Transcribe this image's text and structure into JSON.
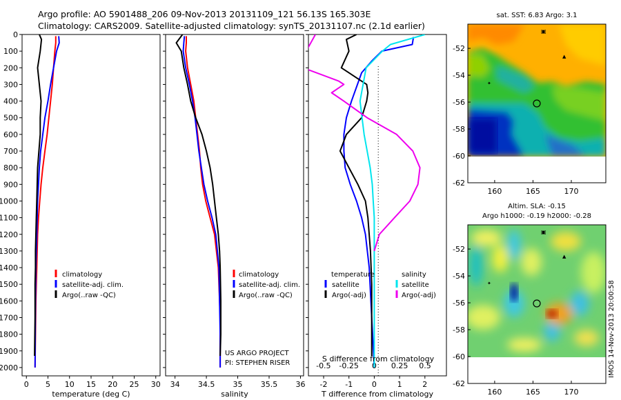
{
  "header": {
    "line1": "Argo profile: AO 5901488_206 09-Nov-2013 20131109_121 56.13S 165.303E",
    "line2": "Climatology: CARS2009. Satellite-adjusted climatology: synTS_20131107.nc (2.1d earlier)"
  },
  "project": {
    "line1": "US ARGO PROJECT",
    "line2": "PI: STEPHEN RISER"
  },
  "footer": "IMOS 14-Nov-2013 20:00:58",
  "colors": {
    "climatology": "#ff0000",
    "satellite": "#0000ff",
    "argo": "#000000",
    "satellite_s": "#00e5ee",
    "argo_s": "#ee00ee"
  },
  "chart_data": [
    {
      "type": "line",
      "xlabel": "temperature (deg C)",
      "ylabel": "",
      "xlim": [
        -1,
        31
      ],
      "ylim": [
        2050,
        0
      ],
      "xticks": [
        "0",
        "5",
        "10",
        "15",
        "20",
        "25",
        "30"
      ],
      "yticks": [
        "0",
        "100",
        "200",
        "300",
        "400",
        "500",
        "600",
        "700",
        "800",
        "900",
        "1000",
        "1100",
        "1200",
        "1300",
        "1400",
        "1500",
        "1600",
        "1700",
        "1800",
        "1900",
        "2000"
      ],
      "legend": [
        "climatology",
        "satellite-adj. clim.",
        "Argo(..raw -QC)"
      ],
      "series": [
        {
          "name": "climatology",
          "color": "#ff0000",
          "x": [
            6.8,
            6.8,
            6.6,
            6.3,
            6.0,
            5.6,
            5.2,
            4.8,
            4.3,
            3.8,
            3.4,
            3.1,
            2.8,
            2.6,
            2.5,
            2.4,
            2.3,
            2.2,
            2.1,
            2.0
          ],
          "y": [
            10,
            50,
            100,
            200,
            300,
            400,
            500,
            600,
            700,
            800,
            900,
            1000,
            1100,
            1200,
            1300,
            1400,
            1500,
            1600,
            1800,
            2000
          ]
        },
        {
          "name": "satellite-adj. clim.",
          "color": "#0000ff",
          "x": [
            7.5,
            7.6,
            7.0,
            6.3,
            5.6,
            5.0,
            4.3,
            3.8,
            3.3,
            3.0,
            2.8,
            2.6,
            2.5,
            2.4,
            2.3,
            2.2,
            2.1,
            2.0
          ],
          "y": [
            10,
            50,
            100,
            200,
            300,
            400,
            500,
            600,
            700,
            800,
            900,
            1000,
            1100,
            1200,
            1300,
            1400,
            1600,
            2000
          ]
        },
        {
          "name": "Argo(..raw -QC)",
          "color": "#000000",
          "x": [
            3.0,
            3.5,
            3.2,
            2.6,
            3.0,
            3.4,
            3.2,
            3.2,
            2.9,
            2.6,
            2.5,
            2.4,
            2.3,
            2.2,
            2.1,
            2.1,
            2.0,
            2.0,
            1.9
          ],
          "y": [
            0,
            30,
            100,
            200,
            300,
            400,
            500,
            600,
            700,
            800,
            900,
            1000,
            1100,
            1200,
            1300,
            1400,
            1500,
            1700,
            1930
          ]
        }
      ]
    },
    {
      "type": "line",
      "xlabel": "salinity",
      "xlim": [
        33.85,
        36.05
      ],
      "ylim": [
        2050,
        0
      ],
      "xticks": [
        "34",
        "34.5",
        "35",
        "35.5",
        "36"
      ],
      "legend": [
        "climatology",
        "satellite-adj. clim.",
        "Argo(..raw -QC)"
      ],
      "series": [
        {
          "name": "climatology",
          "color": "#ff0000",
          "x": [
            34.18,
            34.18,
            34.17,
            34.2,
            34.25,
            34.3,
            34.33,
            34.36,
            34.39,
            34.41,
            34.44,
            34.49,
            34.56,
            34.63,
            34.69,
            34.71,
            34.72,
            34.72,
            34.72
          ],
          "y": [
            10,
            50,
            100,
            200,
            300,
            400,
            500,
            600,
            700,
            800,
            900,
            1000,
            1100,
            1200,
            1400,
            1600,
            1700,
            1800,
            2000
          ]
        },
        {
          "name": "satellite-adj. clim.",
          "color": "#0000ff",
          "x": [
            34.15,
            34.14,
            34.13,
            34.17,
            34.23,
            34.28,
            34.32,
            34.35,
            34.38,
            34.42,
            34.46,
            34.52,
            34.59,
            34.65,
            34.7,
            34.71,
            34.72,
            34.72
          ],
          "y": [
            10,
            50,
            100,
            200,
            300,
            400,
            500,
            600,
            700,
            800,
            900,
            1000,
            1100,
            1200,
            1400,
            1600,
            1800,
            2000
          ]
        },
        {
          "name": "Argo(..raw -QC)",
          "color": "#000000",
          "x": [
            34.12,
            34.02,
            34.1,
            34.14,
            34.2,
            34.25,
            34.33,
            34.43,
            34.5,
            34.56,
            34.6,
            34.63,
            34.66,
            34.69,
            34.71,
            34.72,
            34.73,
            34.73,
            34.72
          ],
          "y": [
            0,
            50,
            100,
            200,
            300,
            400,
            500,
            600,
            700,
            800,
            900,
            1000,
            1100,
            1200,
            1300,
            1400,
            1600,
            1800,
            1930
          ]
        }
      ]
    },
    {
      "type": "line",
      "xlabel": "T difference from climatology",
      "x2label": "S difference from climatology",
      "xlim": [
        -2.6,
        2.85
      ],
      "ylim": [
        2050,
        0
      ],
      "xticks": [
        "-2",
        "-1",
        "0",
        "1",
        "2"
      ],
      "x2ticks": [
        "-0.5",
        "-0.25",
        "0",
        "0.25",
        "0.5"
      ],
      "legend_t": {
        "title": "temperature",
        "items": [
          "satellite",
          "Argo(-adj)"
        ]
      },
      "legend_s": {
        "title": "salinity",
        "items": [
          "satellite",
          "Argo(-adj)"
        ]
      },
      "series": [
        {
          "name": "satellite",
          "color": "#0000ff",
          "x": [
            1.55,
            1.5,
            0.3,
            -0.1,
            -0.5,
            -0.9,
            -1.1,
            -1.2,
            -1.2,
            -1.15,
            -0.95,
            -0.7,
            -0.5,
            -0.35,
            -0.2,
            -0.1,
            0.0
          ],
          "y": [
            15,
            60,
            100,
            160,
            230,
            400,
            500,
            600,
            700,
            800,
            900,
            1000,
            1100,
            1200,
            1400,
            1700,
            2000
          ]
        },
        {
          "name": "Argo(-adj)",
          "color": "#000000",
          "x": [
            -0.7,
            -1.1,
            -1.0,
            -1.3,
            -0.7,
            -0.3,
            -0.25,
            -0.3,
            -0.5,
            -1.1,
            -1.35,
            -1.0,
            -0.65,
            -0.35,
            -0.25,
            -0.15,
            -0.1,
            -0.1
          ],
          "y": [
            0,
            30,
            100,
            200,
            260,
            300,
            350,
            400,
            500,
            600,
            700,
            800,
            900,
            1000,
            1100,
            1300,
            1500,
            1930
          ]
        },
        {
          "name": "satellite",
          "color": "#00e5ee",
          "x": [
            0.5,
            0.16,
            0.08,
            -0.08,
            -0.11,
            -0.14,
            -0.12,
            -0.1,
            -0.07,
            -0.04,
            -0.02,
            -0.01,
            0.0,
            0.0,
            0.0
          ],
          "y": [
            0,
            60,
            100,
            200,
            300,
            400,
            500,
            600,
            700,
            800,
            900,
            1000,
            1100,
            1400,
            2000
          ]
        },
        {
          "name": "Argo(-adj)",
          "color": "#ee00ee",
          "x": [
            -0.58,
            -0.67,
            -0.7,
            -0.35,
            -0.3,
            -0.42,
            -0.3,
            -0.07,
            0.22,
            0.38,
            0.45,
            0.43,
            0.35,
            0.2,
            0.05,
            0.0
          ],
          "y": [
            0,
            100,
            200,
            280,
            300,
            350,
            400,
            500,
            600,
            700,
            800,
            900,
            1000,
            1100,
            1200,
            1300
          ]
        }
      ]
    },
    {
      "type": "heatmap",
      "title": "sat. SST: 6.83 Argo: 3.1",
      "xlim": [
        156.5,
        174.5
      ],
      "ylim": [
        -62,
        -50.2
      ],
      "xticks": [
        "160",
        "165",
        "170"
      ],
      "yticks": [
        "-52",
        "-54",
        "-56",
        "-58",
        "-60",
        "-62"
      ],
      "argo_position": {
        "lon": 165.303,
        "lat": -56.13
      }
    },
    {
      "type": "heatmap",
      "title": "Altim. SLA: -0.15",
      "subtitle": "Argo h1000: -0.19 h2000: -0.28",
      "xlim": [
        156.5,
        174.5
      ],
      "ylim": [
        -62,
        -50.2
      ],
      "xticks": [
        "160",
        "165",
        "170"
      ],
      "yticks": [
        "-52",
        "-54",
        "-56",
        "-58",
        "-60",
        "-62"
      ],
      "argo_position": {
        "lon": 165.303,
        "lat": -56.13
      }
    }
  ]
}
